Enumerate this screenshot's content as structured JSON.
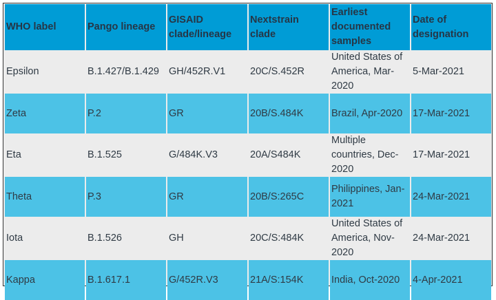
{
  "headers": [
    "WHO label",
    "Pango lineage",
    "GISAID clade/lineage",
    "Nextstrain clade",
    "Earliest documented samples",
    "Date of designation"
  ],
  "rows": [
    [
      "Epsilon",
      "B.1.427/B.1.429",
      "GH/452R.V1",
      "20C/S.452R",
      "United States of America, Mar-2020",
      "5-Mar-2021"
    ],
    [
      "Zeta",
      "P.2",
      "GR",
      "20B/S.484K",
      "Brazil, Apr-2020",
      "17-Mar-2021"
    ],
    [
      "Eta",
      "B.1.525",
      "G/484K.V3",
      "20A/S484K",
      "Multiple countries, Dec-2020",
      "17-Mar-2021"
    ],
    [
      "Theta",
      "P.3",
      "GR",
      "20B/S:265C",
      "Philippines, Jan-2021",
      "24-Mar-2021"
    ],
    [
      "Iota",
      "B.1.526",
      "GH",
      "20C/S:484K",
      "United States of America, Nov-2020",
      "24-Mar-2021"
    ],
    [
      "Kappa",
      "B.1.617.1",
      "G/452R.V3",
      "21A/S:154K",
      "India, Oct-2020",
      "4-Apr-2021"
    ]
  ],
  "colors": {
    "header": "#009cd6",
    "alt_row": "#4cc2e6",
    "plain_row": "#ececec"
  }
}
